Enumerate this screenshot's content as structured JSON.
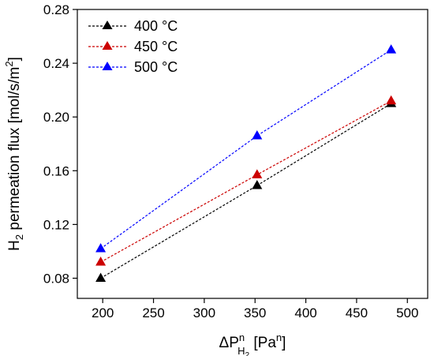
{
  "chart_data": {
    "type": "line",
    "x": [
      198,
      352,
      484
    ],
    "series": [
      {
        "name": "400 °C",
        "color": "#000000",
        "marker": "triangle",
        "values": [
          0.08,
          0.149,
          0.21
        ]
      },
      {
        "name": "450 °C",
        "color": "#cc0000",
        "marker": "triangle",
        "values": [
          0.092,
          0.157,
          0.212
        ]
      },
      {
        "name": "500 °C",
        "color": "#0000ff",
        "marker": "triangle",
        "values": [
          0.102,
          0.186,
          0.25
        ]
      }
    ],
    "xlim": [
      175,
      520
    ],
    "ylim": [
      0.065,
      0.28
    ],
    "xticks": [
      200,
      250,
      300,
      350,
      400,
      450,
      500
    ],
    "yticks": [
      0.08,
      0.12,
      0.16,
      0.2,
      0.24,
      0.28
    ],
    "xtick_labels": [
      "200",
      "250",
      "300",
      "350",
      "400",
      "450",
      "500"
    ],
    "ytick_labels": [
      "0.08",
      "0.12",
      "0.16",
      "0.20",
      "0.24",
      "0.28"
    ],
    "xlabel": {
      "delta": "ΔP",
      "sup": "n",
      "sub": "H",
      "subsub": "2",
      "unit_open": " [Pa",
      "unit_sup": "n",
      "unit_close": "]"
    },
    "ylabel": {
      "main": "H",
      "sub": "2",
      "rest": " permeation flux [mol/s/m",
      "sup": "2",
      "close": "]"
    },
    "line_style": "dotted",
    "grid": false,
    "legend_position": "top-left"
  }
}
